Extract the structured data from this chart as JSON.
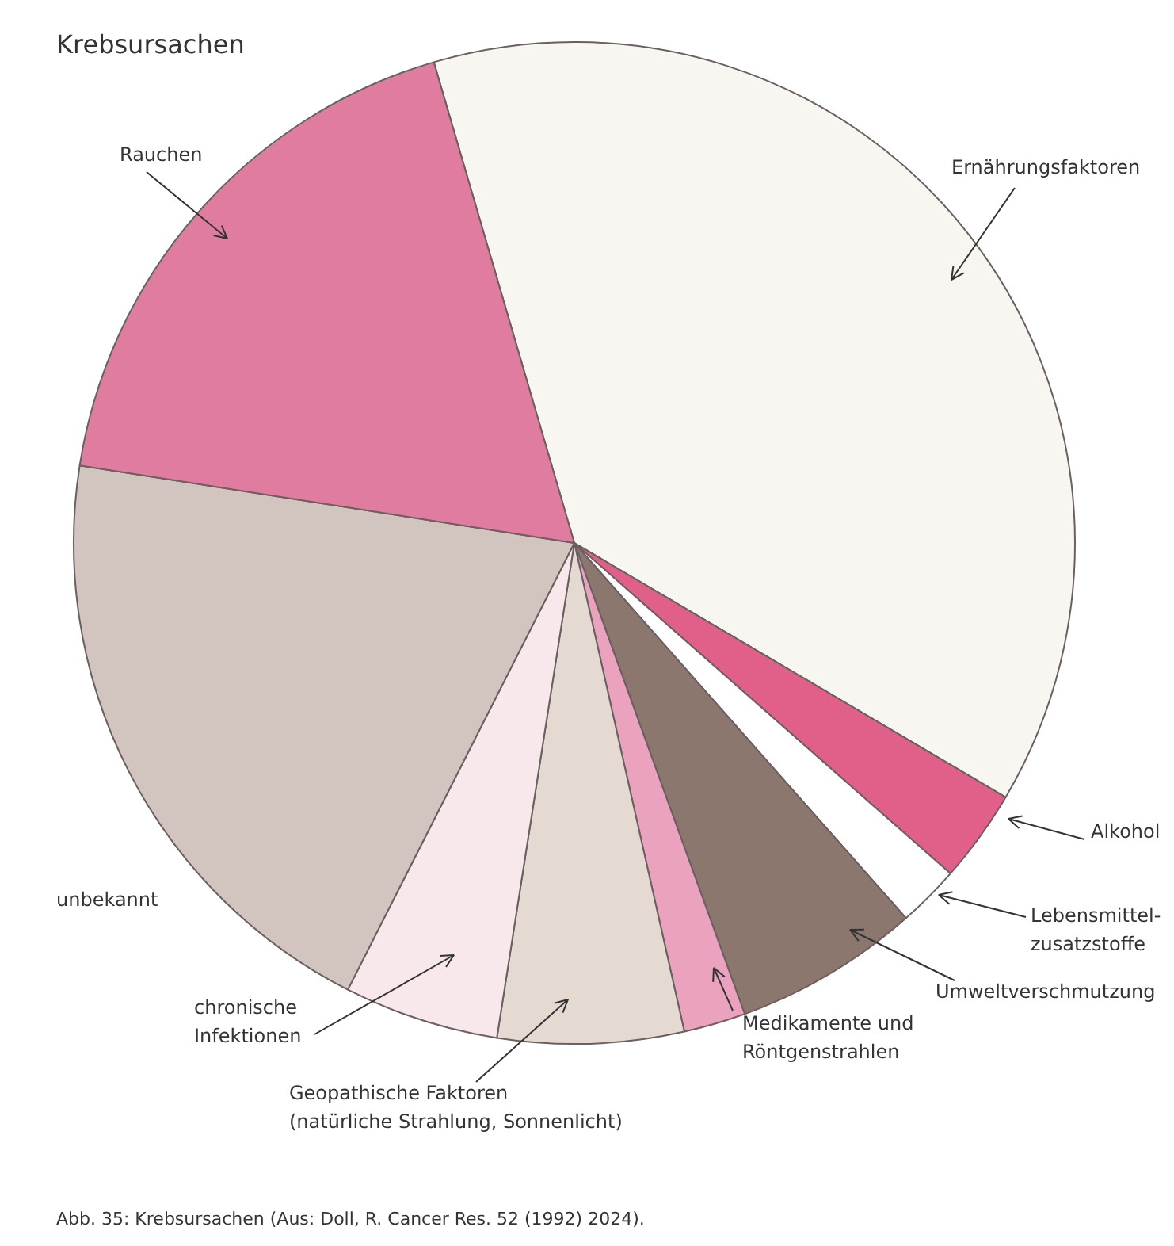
{
  "chart_data": {
    "type": "pie",
    "title": "Krebsursachen",
    "categories": [
      "Ernährungsfaktoren",
      "Alkohol",
      "Lebensmittel-\nzusatzstoffe",
      "Umweltverschmutzung",
      "Medikamente und\nRöntgenstrahlen",
      "Geopathische Faktoren\n(natürliche Strahlung, Sonnenlicht)",
      "chronische\nInfektionen",
      "unbekannt",
      "Rauchen"
    ],
    "values": [
      38,
      3,
      2,
      6,
      2,
      6,
      5,
      20,
      18
    ],
    "colors": [
      "#f8f6f1",
      "#e0608a",
      "#ffffff",
      "#8c776f",
      "#eaa2bf",
      "#e4dad2",
      "#f8e8ec",
      "#d2c4be",
      "#e07ca0"
    ],
    "annotations": [
      "Abb. 35: Krebsursachen (Aus: Doll, R. Cancer Res. 52 (1992) 2024)."
    ]
  }
}
